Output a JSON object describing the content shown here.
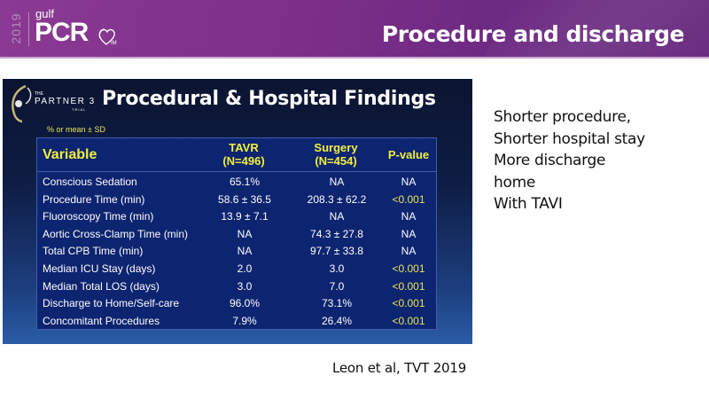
{
  "header": {
    "logo": {
      "year": "2019",
      "brand_small": "gulf",
      "brand_main": "PCR",
      "partner_mark": "GIM"
    },
    "title": "Procedure and discharge",
    "colors": {
      "band": "#7b2e88",
      "text": "#ffffff"
    }
  },
  "slide_image": {
    "trial_logo": {
      "the": "THE",
      "name": "PARTNER 3",
      "trial": "TRIAL"
    },
    "title": "Procedural & Hospital Findings",
    "note": "% or mean ± SD",
    "table": {
      "columns": [
        "Variable",
        "TAVR\n(N=496)",
        "Surgery\n(N=454)",
        "P-value"
      ],
      "header": {
        "variable": "Variable",
        "tavr_line1": "TAVR",
        "tavr_line2": "(N=496)",
        "surgery_line1": "Surgery",
        "surgery_line2": "(N=454)",
        "pvalue": "P-value"
      },
      "rows": [
        [
          "Conscious Sedation",
          "65.1%",
          "NA",
          "NA"
        ],
        [
          "Procedure Time (min)",
          "58.6 ± 36.5",
          "208.3 ± 62.2",
          "<0.001"
        ],
        [
          "Fluoroscopy Time (min)",
          "13.9 ± 7.1",
          "NA",
          "NA"
        ],
        [
          "Aortic Cross-Clamp Time (min)",
          "NA",
          "74.3 ± 27.8",
          "NA"
        ],
        [
          "Total CPB Time (min)",
          "NA",
          "97.7 ± 33.8",
          "NA"
        ],
        [
          "Median ICU Stay (days)",
          "2.0",
          "3.0",
          "<0.001"
        ],
        [
          "Median Total LOS (days)",
          "3.0",
          "7.0",
          "<0.001"
        ],
        [
          "Discharge to Home/Self-care",
          "96.0%",
          "73.1%",
          "<0.001"
        ],
        [
          "Concomitant Procedures",
          "7.9%",
          "26.4%",
          "<0.001"
        ]
      ],
      "colors": {
        "header_text": "#f2ef3c",
        "significant": "#e6e65a",
        "body_text": "#ffffff",
        "background": "#0d2470"
      }
    }
  },
  "side_text": {
    "lines": [
      "Shorter procedure,",
      "Shorter hospital stay",
      "More discharge",
      "home",
      "With TAVI"
    ]
  },
  "citation": "Leon et al, TVT 2019"
}
